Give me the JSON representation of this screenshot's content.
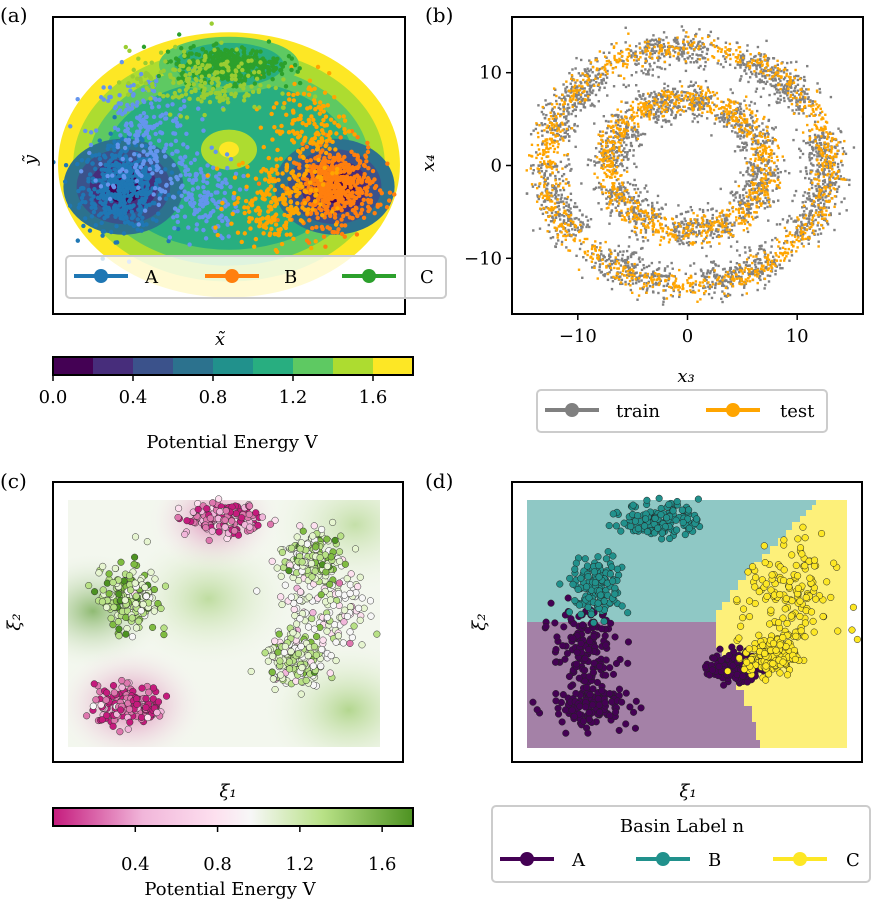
{
  "chart_data": [
    {
      "panel": "(a)",
      "type": "scatter",
      "subtype": "scatter over filled potential contours",
      "xlabel": "x̃",
      "ylabel": "ỹ",
      "legend": [
        {
          "label": "A",
          "color": "#1f77b4"
        },
        {
          "label": "B",
          "color": "#ff7f0e"
        },
        {
          "label": "C",
          "color": "#2ca02c"
        }
      ],
      "legend_position": "bottom",
      "xlim": [
        -1.75,
        1.75
      ],
      "ylim": [
        -1.5,
        1.3
      ],
      "contours": [
        {
          "level": 1.8,
          "rx": 1.7,
          "ry": 1.25,
          "cx": 0.0,
          "cy": 0.0
        },
        {
          "level": 1.6,
          "rx": 1.55,
          "ry": 1.1,
          "cx": 0.0,
          "cy": 0.0
        },
        {
          "level": 1.4,
          "rx": 1.4,
          "ry": 0.95,
          "cx": 0.0,
          "cy": 0.0
        },
        {
          "level": 1.2,
          "rx": 1.25,
          "ry": 0.8,
          "cx": 0.0,
          "cy": 0.0
        }
      ],
      "basin_centers": [
        {
          "name": "A",
          "x": -1.05,
          "y": -0.3
        },
        {
          "name": "B",
          "x": 1.05,
          "y": -0.3
        },
        {
          "name": "C",
          "x": 0.0,
          "y": 0.85
        }
      ],
      "colorbar": {
        "label": "Potential Energy V",
        "ticks": [
          "0.0",
          "0.4",
          "0.8",
          "1.2",
          "1.6"
        ],
        "tick_values": [
          0.0,
          0.4,
          0.8,
          1.2,
          1.6
        ],
        "range": [
          0.0,
          1.8
        ],
        "levels": 9,
        "colormap": "viridis"
      }
    },
    {
      "panel": "(b)",
      "type": "scatter",
      "subtype": "two concentric noisy rings",
      "xlabel": "x₃",
      "ylabel": "x₄",
      "xlim": [
        -16,
        16
      ],
      "ylim": [
        -16,
        16
      ],
      "xticks": [
        -10,
        0,
        10
      ],
      "xticklabels": [
        "−10",
        "0",
        "10"
      ],
      "yticks": [
        -10,
        0,
        10
      ],
      "yticklabels": [
        "−10",
        "0",
        "10"
      ],
      "rings": [
        {
          "radius": 7.0,
          "width": 2.2
        },
        {
          "radius": 12.6,
          "width": 2.2
        }
      ],
      "legend": [
        {
          "label": "train",
          "color": "#808080"
        },
        {
          "label": "test",
          "color": "#ffa500"
        }
      ],
      "legend_position": "below"
    },
    {
      "panel": "(c)",
      "type": "scatter",
      "subtype": "scatter colored by potential over heatmap",
      "xlabel": "ξ₁",
      "ylabel": "ξ₂",
      "xlim": [
        0,
        1
      ],
      "ylim": [
        0,
        1
      ],
      "colorbar": {
        "label": "Potential Energy V",
        "ticks": [
          "0.4",
          "0.8",
          "1.2",
          "1.6"
        ],
        "tick_values": [
          0.4,
          0.8,
          1.2,
          1.6
        ],
        "range": [
          0.0,
          1.75
        ],
        "colormap": "PiYG"
      },
      "clusters": [
        {
          "x": 0.2,
          "y": 0.17,
          "sx": 0.055,
          "sy": 0.04,
          "v": 0.15
        },
        {
          "x": 0.5,
          "y": 0.92,
          "sx": 0.06,
          "sy": 0.03,
          "v": 0.2
        },
        {
          "x": 0.2,
          "y": 0.6,
          "sx": 0.045,
          "sy": 0.07,
          "v": 1.3
        },
        {
          "x": 0.82,
          "y": 0.6,
          "sx": 0.07,
          "sy": 0.12,
          "v": 0.9
        },
        {
          "x": 0.73,
          "y": 0.35,
          "sx": 0.05,
          "sy": 0.05,
          "v": 1.1
        },
        {
          "x": 0.78,
          "y": 0.77,
          "sx": 0.04,
          "sy": 0.04,
          "v": 1.2
        }
      ]
    },
    {
      "panel": "(d)",
      "type": "scatter",
      "subtype": "scatter over basin classification regions",
      "xlabel": "ξ₁",
      "ylabel": "ξ₂",
      "xlim": [
        0,
        1
      ],
      "ylim": [
        0,
        1
      ],
      "legend_title": "Basin Label n",
      "legend": [
        {
          "label": "A",
          "color": "#440154"
        },
        {
          "label": "B",
          "color": "#21918c"
        },
        {
          "label": "C",
          "color": "#fde725"
        }
      ],
      "regions": [
        {
          "label": "A",
          "color": "#440154"
        },
        {
          "label": "B",
          "color": "#21918c"
        },
        {
          "label": "C",
          "color": "#fde725"
        }
      ],
      "clusters": [
        {
          "label": "A",
          "x": 0.2,
          "y": 0.17,
          "sx": 0.06,
          "sy": 0.04
        },
        {
          "label": "A",
          "x": 0.18,
          "y": 0.4,
          "sx": 0.05,
          "sy": 0.08
        },
        {
          "label": "A",
          "x": 0.65,
          "y": 0.33,
          "sx": 0.04,
          "sy": 0.03
        },
        {
          "label": "B",
          "x": 0.42,
          "y": 0.92,
          "sx": 0.06,
          "sy": 0.035
        },
        {
          "label": "B",
          "x": 0.22,
          "y": 0.65,
          "sx": 0.04,
          "sy": 0.06
        },
        {
          "label": "C",
          "x": 0.82,
          "y": 0.6,
          "sx": 0.07,
          "sy": 0.12
        },
        {
          "label": "C",
          "x": 0.76,
          "y": 0.37,
          "sx": 0.04,
          "sy": 0.04
        }
      ]
    }
  ]
}
